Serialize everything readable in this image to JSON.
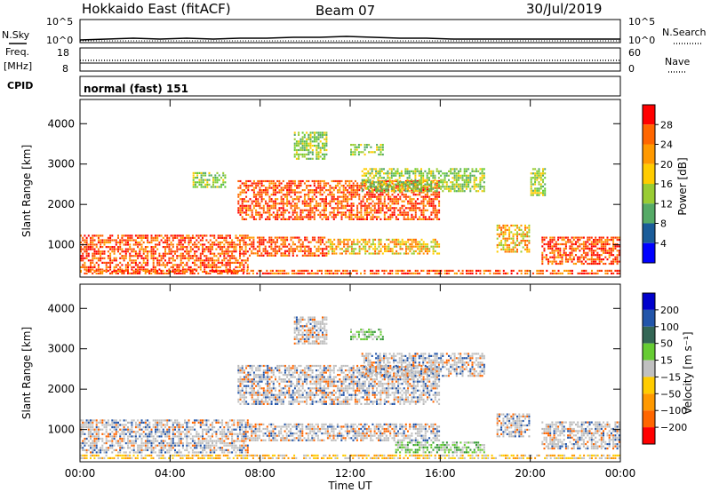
{
  "header": {
    "station": "Hokkaido East (fitACF)",
    "beam": "Beam 07",
    "date": "30/Jul/2019"
  },
  "noise_panel": {
    "left_label": "N.Sky",
    "right_label": "N.Search",
    "left_ticks": [
      "10^5",
      "10^0"
    ],
    "right_ticks": [
      "10^5",
      "10^0"
    ]
  },
  "freq_panel": {
    "left_label_1": "Freq.",
    "left_label_2": "[MHz]",
    "right_label": "Nave",
    "left_ticks": [
      "18",
      "8"
    ],
    "right_ticks": [
      "60",
      "0"
    ]
  },
  "cpid_panel": {
    "label": "CPID",
    "text": "normal (fast) 151"
  },
  "chart_data": [
    {
      "type": "heatmap",
      "name": "power",
      "ylabel": "Slant Range [km]",
      "ylim": [
        200,
        4600
      ],
      "yticks": [
        "1000",
        "2000",
        "3000",
        "4000"
      ],
      "colorbar_label": "Power [dB]",
      "colorbar_ticks": [
        "28",
        "24",
        "20",
        "16",
        "12",
        "8",
        "4"
      ],
      "colorbar_colors": [
        "#ff0000",
        "#ff6600",
        "#ff9900",
        "#ffcc00",
        "#99cc33",
        "#55aa66",
        "#1a5c99",
        "#0000ff"
      ],
      "regions": [
        {
          "t0": 0.0,
          "t1": 7.5,
          "r0": 300,
          "r1": 1250,
          "level": "strong"
        },
        {
          "t0": 7.5,
          "t1": 11.0,
          "r0": 700,
          "r1": 1200,
          "level": "strong"
        },
        {
          "t0": 11.0,
          "t1": 16.0,
          "r0": 750,
          "r1": 1150,
          "level": "medium"
        },
        {
          "t0": 20.5,
          "t1": 24.0,
          "r0": 500,
          "r1": 1200,
          "level": "strong"
        },
        {
          "t0": 18.5,
          "t1": 20.0,
          "r0": 800,
          "r1": 1500,
          "level": "medium"
        },
        {
          "t0": 7.0,
          "t1": 16.0,
          "r0": 1600,
          "r1": 2600,
          "level": "strong"
        },
        {
          "t0": 12.5,
          "t1": 18.0,
          "r0": 2300,
          "r1": 2900,
          "level": "weak"
        },
        {
          "t0": 5.0,
          "t1": 6.5,
          "r0": 2400,
          "r1": 2800,
          "level": "weak"
        },
        {
          "t0": 9.5,
          "t1": 11.0,
          "r0": 3100,
          "r1": 3800,
          "level": "weak"
        },
        {
          "t0": 12.0,
          "t1": 13.5,
          "r0": 3200,
          "r1": 3500,
          "level": "weak"
        },
        {
          "t0": 20.0,
          "t1": 20.7,
          "r0": 2200,
          "r1": 2900,
          "level": "weak"
        },
        {
          "t0": 0.0,
          "t1": 24.0,
          "r0": 250,
          "r1": 380,
          "level": "strong"
        }
      ]
    },
    {
      "type": "heatmap",
      "name": "velocity",
      "ylabel": "Slant Range [km]",
      "xlabel": "Time UT",
      "ylim": [
        200,
        4600
      ],
      "yticks": [
        "1000",
        "2000",
        "3000",
        "4000"
      ],
      "xticks": [
        "00:00",
        "04:00",
        "08:00",
        "12:00",
        "16:00",
        "20:00",
        "00:00"
      ],
      "colorbar_label": "Velocity [m s⁻¹]",
      "colorbar_ticks": [
        "200",
        "100",
        "50",
        "15",
        "−15",
        "−50",
        "−100",
        "−200"
      ],
      "colorbar_colors": [
        "#0000cc",
        "#2255aa",
        "#336655",
        "#66cc33",
        "#c0c0c0",
        "#ffcc00",
        "#ff9900",
        "#ff6600",
        "#ff0000"
      ],
      "regions": [
        {
          "t0": 0.0,
          "t1": 7.5,
          "r0": 400,
          "r1": 1250,
          "level": "gray"
        },
        {
          "t0": 7.5,
          "t1": 16.0,
          "r0": 700,
          "r1": 1150,
          "level": "gray"
        },
        {
          "t0": 20.5,
          "t1": 24.0,
          "r0": 500,
          "r1": 1200,
          "level": "gray"
        },
        {
          "t0": 18.5,
          "t1": 20.0,
          "r0": 800,
          "r1": 1400,
          "level": "gray"
        },
        {
          "t0": 7.0,
          "t1": 16.0,
          "r0": 1600,
          "r1": 2600,
          "level": "gray"
        },
        {
          "t0": 12.5,
          "t1": 18.0,
          "r0": 2300,
          "r1": 2900,
          "level": "gray"
        },
        {
          "t0": 14.0,
          "t1": 18.0,
          "r0": 400,
          "r1": 700,
          "level": "green"
        },
        {
          "t0": 0.0,
          "t1": 24.0,
          "r0": 250,
          "r1": 380,
          "level": "yellow"
        },
        {
          "t0": 9.5,
          "t1": 11.0,
          "r0": 3100,
          "r1": 3800,
          "level": "gray"
        },
        {
          "t0": 12.0,
          "t1": 13.5,
          "r0": 3200,
          "r1": 3500,
          "level": "green"
        }
      ]
    }
  ]
}
